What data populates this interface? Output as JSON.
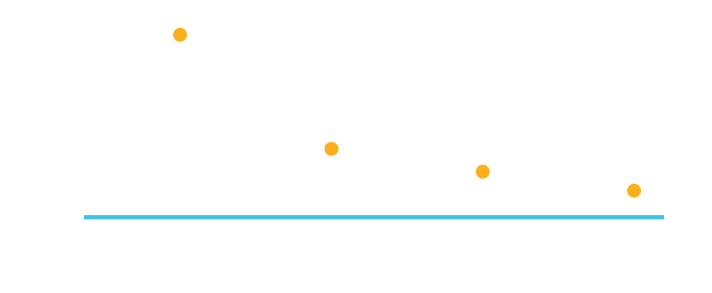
{
  "chart_data": {
    "type": "scatter",
    "x": [
      1,
      2,
      3,
      4
    ],
    "y": [
      2.4,
      0.9,
      0.6,
      0.35
    ],
    "baseline": 0,
    "ylim": [
      0,
      2.4
    ],
    "point_color": "#FBB01B",
    "baseline_color": "#3CC3E6",
    "grid": false,
    "legend": "none"
  }
}
